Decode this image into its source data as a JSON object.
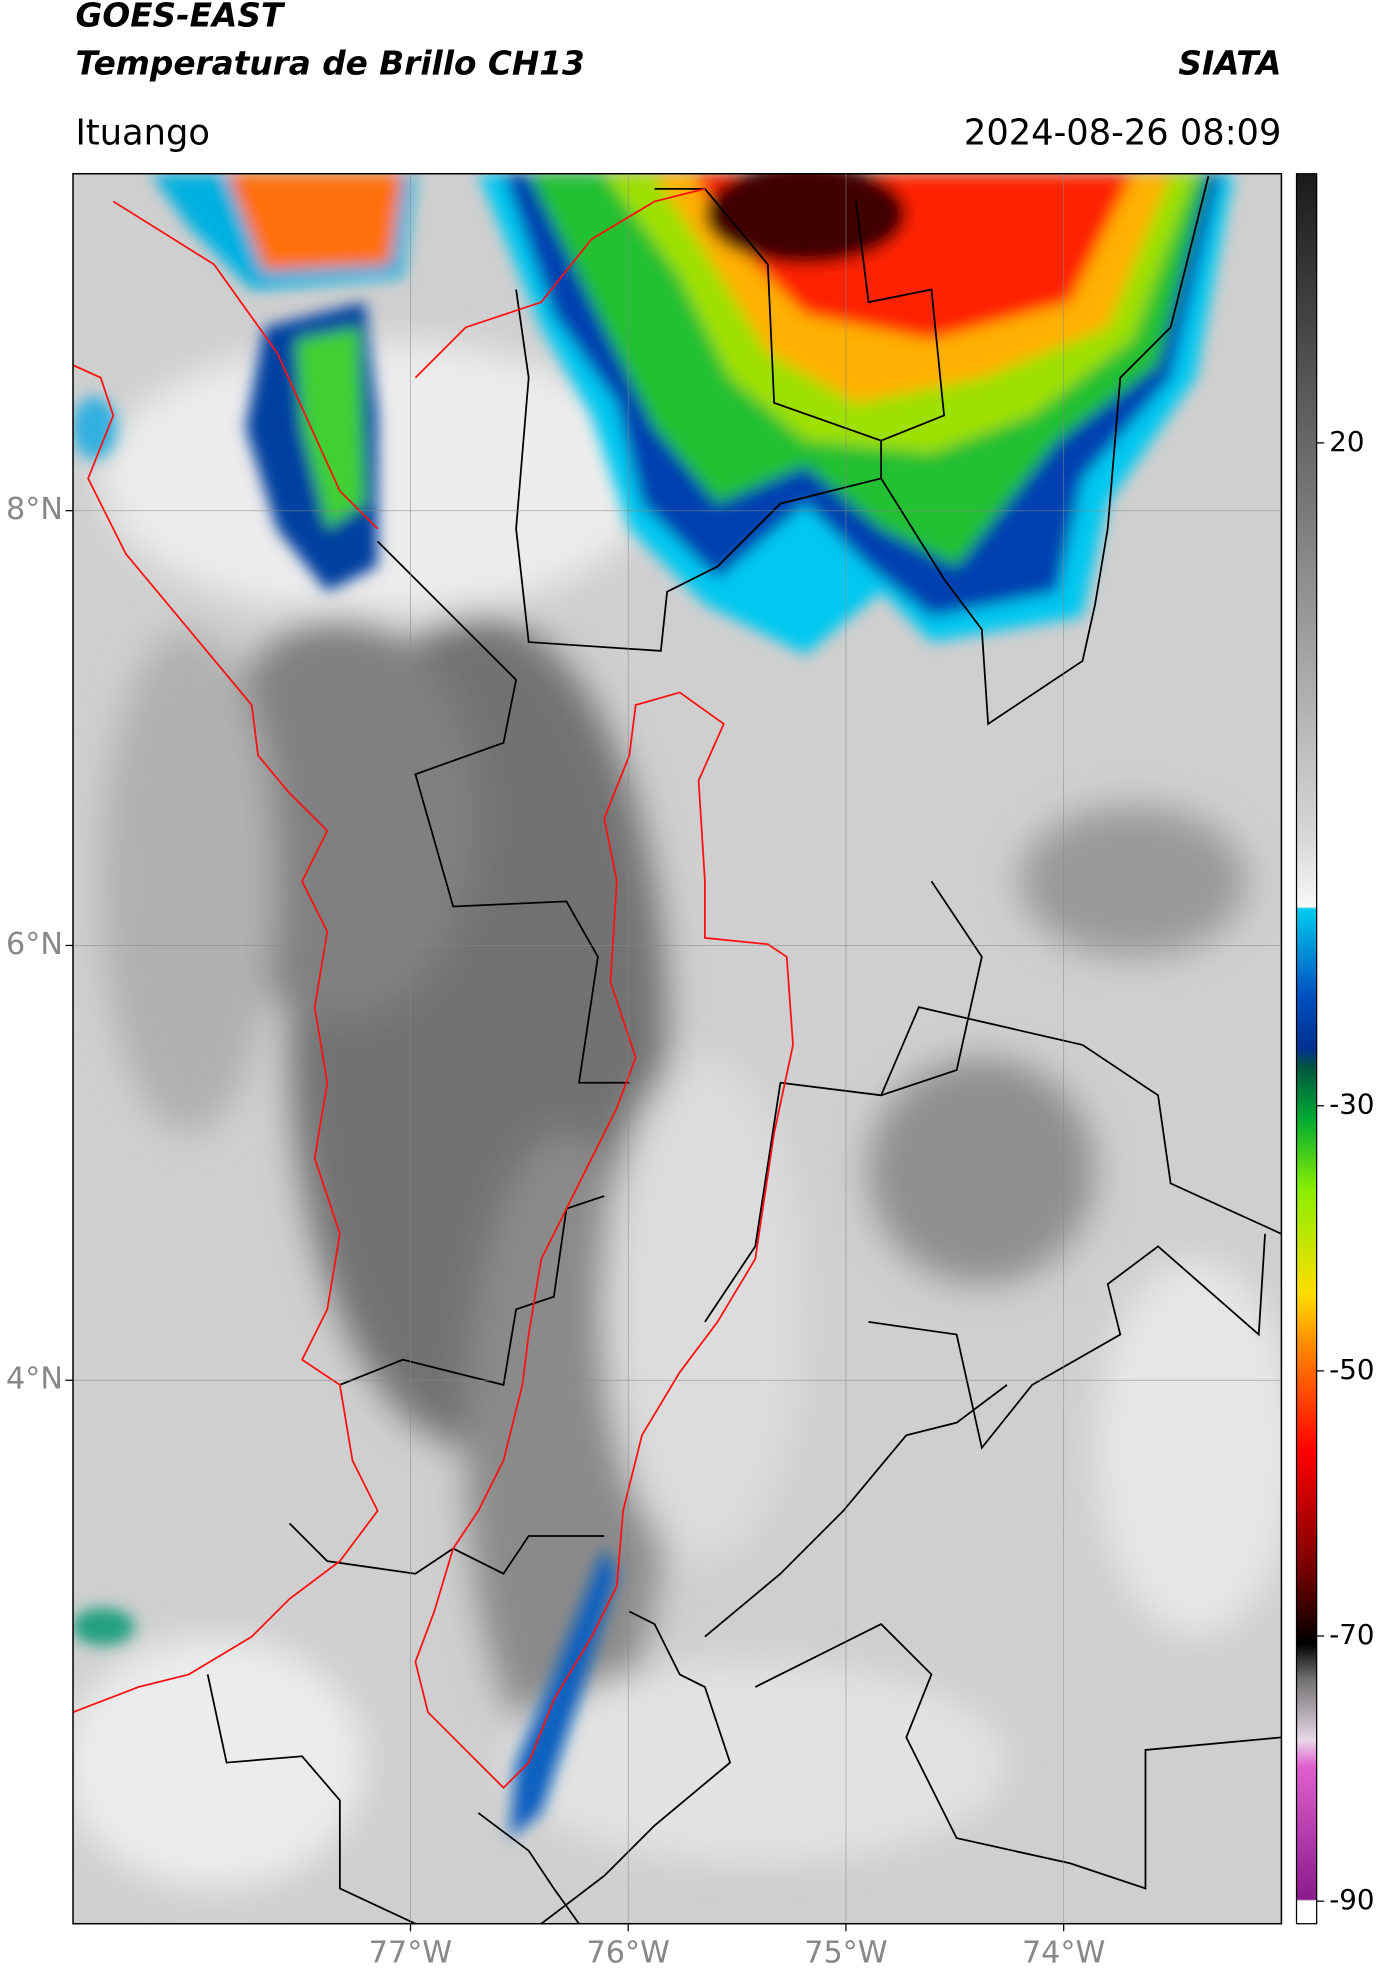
{
  "header": {
    "title": "GOES-EAST",
    "subtitle": "Temperatura de Brillo CH13",
    "brand": "SIATA",
    "location": "Ituango",
    "timestamp": "2024-08-26 08:09"
  },
  "map": {
    "xlim": [
      -78.55,
      -73.0
    ],
    "ylim": [
      1.5,
      9.55
    ],
    "xticks": [
      {
        "value": -77,
        "label": "77°W"
      },
      {
        "value": -76,
        "label": "76°W"
      },
      {
        "value": -75,
        "label": "75°W"
      },
      {
        "value": -74,
        "label": "74°W"
      }
    ],
    "yticks": [
      {
        "value": 4,
        "label": "4°N"
      },
      {
        "value": 6,
        "label": "6°N"
      },
      {
        "value": 8,
        "label": "8°N"
      }
    ],
    "grid": true
  },
  "colorbar": {
    "clim": [
      -91.7,
      40.3
    ],
    "ticks": [
      20,
      -30,
      -50,
      -70,
      -90
    ]
  }
}
